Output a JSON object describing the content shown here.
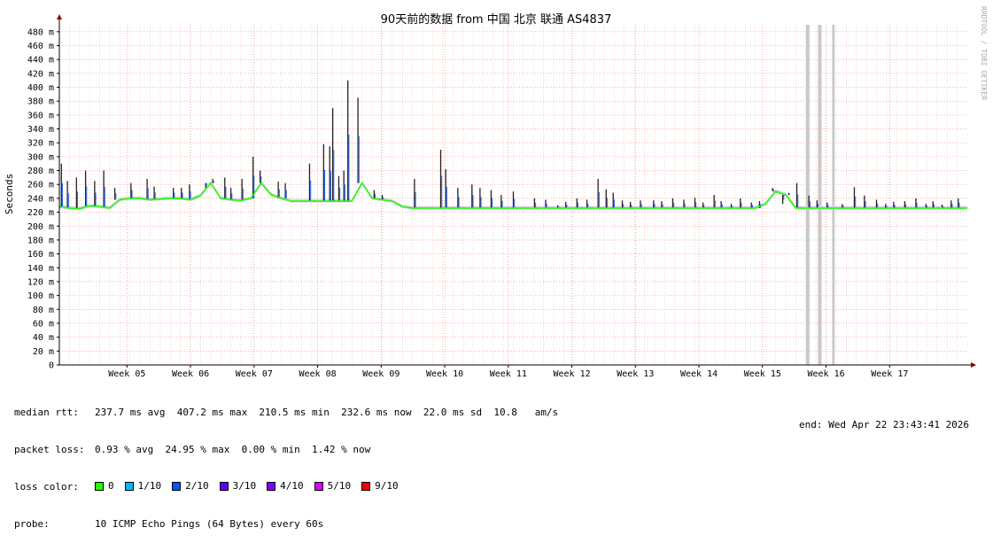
{
  "chart_data": {
    "type": "line",
    "title": "90天前的数据 from  中国 北京 联通 AS4837",
    "ylabel": "Seconds",
    "side_label": "RRDTOOL / TOBI OETIKER",
    "ylim": [
      0,
      490
    ],
    "y_ticks": [
      {
        "v": 0,
        "label": "0"
      },
      {
        "v": 20,
        "label": "20 m"
      },
      {
        "v": 40,
        "label": "40 m"
      },
      {
        "v": 60,
        "label": "60 m"
      },
      {
        "v": 80,
        "label": "80 m"
      },
      {
        "v": 100,
        "label": "100 m"
      },
      {
        "v": 120,
        "label": "120 m"
      },
      {
        "v": 140,
        "label": "140 m"
      },
      {
        "v": 160,
        "label": "160 m"
      },
      {
        "v": 180,
        "label": "180 m"
      },
      {
        "v": 200,
        "label": "200 m"
      },
      {
        "v": 220,
        "label": "220 m"
      },
      {
        "v": 240,
        "label": "240 m"
      },
      {
        "v": 260,
        "label": "260 m"
      },
      {
        "v": 280,
        "label": "280 m"
      },
      {
        "v": 300,
        "label": "300 m"
      },
      {
        "v": 320,
        "label": "320 m"
      },
      {
        "v": 340,
        "label": "340 m"
      },
      {
        "v": 360,
        "label": "360 m"
      },
      {
        "v": 380,
        "label": "380 m"
      },
      {
        "v": 400,
        "label": "400 m"
      },
      {
        "v": 420,
        "label": "420 m"
      },
      {
        "v": 440,
        "label": "440 m"
      },
      {
        "v": 460,
        "label": "460 m"
      },
      {
        "v": 480,
        "label": "480 m"
      }
    ],
    "xlim": [
      0,
      90
    ],
    "x_ticks": [
      {
        "x": 6.7,
        "label": "Week 05"
      },
      {
        "x": 13.0,
        "label": "Week 06"
      },
      {
        "x": 19.3,
        "label": "Week 07"
      },
      {
        "x": 25.6,
        "label": "Week 08"
      },
      {
        "x": 31.9,
        "label": "Week 09"
      },
      {
        "x": 38.2,
        "label": "Week 10"
      },
      {
        "x": 44.5,
        "label": "Week 11"
      },
      {
        "x": 50.8,
        "label": "Week 12"
      },
      {
        "x": 57.1,
        "label": "Week 13"
      },
      {
        "x": 63.4,
        "label": "Week 14"
      },
      {
        "x": 69.7,
        "label": "Week 15"
      },
      {
        "x": 76.0,
        "label": "Week 16"
      },
      {
        "x": 82.3,
        "label": "Week 17"
      }
    ],
    "median_series": [
      [
        0,
        228
      ],
      [
        1,
        226
      ],
      [
        2,
        225
      ],
      [
        3,
        229
      ],
      [
        4,
        228
      ],
      [
        5,
        226
      ],
      [
        6,
        238
      ],
      [
        7,
        240
      ],
      [
        8,
        240
      ],
      [
        9,
        238
      ],
      [
        10,
        239
      ],
      [
        11,
        240
      ],
      [
        12,
        240
      ],
      [
        13,
        238
      ],
      [
        14,
        244
      ],
      [
        15,
        262
      ],
      [
        16,
        240
      ],
      [
        17,
        238
      ],
      [
        18,
        237
      ],
      [
        19,
        240
      ],
      [
        20,
        262
      ],
      [
        21,
        245
      ],
      [
        22,
        240
      ],
      [
        23,
        236
      ],
      [
        24,
        236
      ],
      [
        25,
        236
      ],
      [
        26,
        236
      ],
      [
        27,
        236
      ],
      [
        28,
        236
      ],
      [
        29,
        236
      ],
      [
        30,
        262
      ],
      [
        31,
        240
      ],
      [
        32,
        238
      ],
      [
        33,
        236
      ],
      [
        34,
        228
      ],
      [
        35,
        226
      ],
      [
        36,
        226
      ],
      [
        37,
        226
      ],
      [
        38,
        226
      ],
      [
        39,
        226
      ],
      [
        40,
        226
      ],
      [
        41,
        226
      ],
      [
        42,
        226
      ],
      [
        43,
        226
      ],
      [
        44,
        226
      ],
      [
        45,
        226
      ],
      [
        46,
        226
      ],
      [
        47,
        226
      ],
      [
        48,
        226
      ],
      [
        49,
        226
      ],
      [
        50,
        226
      ],
      [
        51,
        226
      ],
      [
        52,
        226
      ],
      [
        53,
        226
      ],
      [
        54,
        226
      ],
      [
        55,
        226
      ],
      [
        56,
        226
      ],
      [
        57,
        226
      ],
      [
        58,
        226
      ],
      [
        59,
        226
      ],
      [
        60,
        226
      ],
      [
        61,
        226
      ],
      [
        62,
        226
      ],
      [
        63,
        226
      ],
      [
        64,
        226
      ],
      [
        65,
        226
      ],
      [
        66,
        226
      ],
      [
        67,
        226
      ],
      [
        68,
        226
      ],
      [
        69,
        226
      ],
      [
        70,
        232
      ],
      [
        71,
        250
      ],
      [
        72,
        245
      ],
      [
        73,
        226
      ],
      [
        74,
        226
      ],
      [
        75,
        226
      ],
      [
        76,
        226
      ],
      [
        77,
        226
      ],
      [
        78,
        226
      ],
      [
        79,
        226
      ],
      [
        80,
        226
      ],
      [
        81,
        226
      ],
      [
        82,
        226
      ],
      [
        83,
        226
      ],
      [
        84,
        226
      ],
      [
        85,
        226
      ],
      [
        86,
        226
      ],
      [
        87,
        226
      ],
      [
        88,
        226
      ],
      [
        89,
        226
      ],
      [
        90,
        226
      ]
    ],
    "spikes": [
      [
        0.2,
        290
      ],
      [
        0.8,
        265
      ],
      [
        1.7,
        270
      ],
      [
        2.6,
        280
      ],
      [
        3.5,
        265
      ],
      [
        4.4,
        280
      ],
      [
        5.5,
        255
      ],
      [
        7.1,
        262
      ],
      [
        8.7,
        268
      ],
      [
        9.4,
        257
      ],
      [
        11.3,
        255
      ],
      [
        12.1,
        255
      ],
      [
        12.9,
        260
      ],
      [
        14.5,
        255
      ],
      [
        15.2,
        268
      ],
      [
        16.4,
        270
      ],
      [
        17.0,
        255
      ],
      [
        18.1,
        268
      ],
      [
        19.2,
        300
      ],
      [
        19.9,
        280
      ],
      [
        21.7,
        264
      ],
      [
        22.4,
        262
      ],
      [
        24.8,
        290
      ],
      [
        26.2,
        318
      ],
      [
        26.8,
        315
      ],
      [
        27.1,
        370
      ],
      [
        27.7,
        272
      ],
      [
        28.2,
        280
      ],
      [
        28.6,
        410
      ],
      [
        29.6,
        385
      ],
      [
        31.2,
        252
      ],
      [
        32.0,
        245
      ],
      [
        35.2,
        268
      ],
      [
        37.8,
        310
      ],
      [
        38.3,
        282
      ],
      [
        39.5,
        255
      ],
      [
        40.9,
        260
      ],
      [
        41.7,
        255
      ],
      [
        42.8,
        252
      ],
      [
        43.8,
        245
      ],
      [
        45.0,
        250
      ],
      [
        47.1,
        240
      ],
      [
        48.2,
        238
      ],
      [
        49.4,
        230
      ],
      [
        50.2,
        235
      ],
      [
        51.3,
        240
      ],
      [
        52.3,
        238
      ],
      [
        53.4,
        268
      ],
      [
        54.2,
        253
      ],
      [
        54.9,
        248
      ],
      [
        55.8,
        237
      ],
      [
        56.6,
        235
      ],
      [
        57.6,
        237
      ],
      [
        58.9,
        237
      ],
      [
        59.7,
        236
      ],
      [
        60.8,
        240
      ],
      [
        61.9,
        238
      ],
      [
        63.0,
        241
      ],
      [
        63.8,
        234
      ],
      [
        64.9,
        245
      ],
      [
        65.6,
        236
      ],
      [
        66.6,
        232
      ],
      [
        67.5,
        240
      ],
      [
        68.6,
        234
      ],
      [
        69.4,
        236
      ],
      [
        70.7,
        255
      ],
      [
        71.7,
        232
      ],
      [
        72.3,
        248
      ],
      [
        73.1,
        262
      ],
      [
        74.3,
        244
      ],
      [
        75.1,
        237
      ],
      [
        76.1,
        234
      ],
      [
        77.6,
        232
      ],
      [
        78.8,
        256
      ],
      [
        79.8,
        244
      ],
      [
        81.0,
        238
      ],
      [
        81.9,
        232
      ],
      [
        82.7,
        235
      ],
      [
        83.8,
        236
      ],
      [
        84.9,
        240
      ],
      [
        85.9,
        232
      ],
      [
        86.6,
        236
      ],
      [
        87.5,
        231
      ],
      [
        88.4,
        237
      ],
      [
        89.1,
        240
      ]
    ],
    "loss_bars": [
      {
        "x": 74.0,
        "w": 0.35
      },
      {
        "x": 75.2,
        "w": 0.35
      },
      {
        "x": 76.6,
        "w": 0.25
      }
    ],
    "stats": {
      "median_label": "median rtt:",
      "median_values": "237.7 ms avg  407.2 ms max  210.5 ms min  232.6 ms now  22.0 ms sd  10.8   am/s",
      "loss_label": "packet loss:",
      "loss_values": "0.93 % avg  24.95 % max  0.00 % min  1.42 % now",
      "color_label": "loss color:",
      "loss_colors": [
        {
          "label": "0",
          "color": "#26ff00"
        },
        {
          "label": "1/10",
          "color": "#00b8ff"
        },
        {
          "label": "2/10",
          "color": "#0059ff"
        },
        {
          "label": "3/10",
          "color": "#5e00ff"
        },
        {
          "label": "4/10",
          "color": "#7e00ff"
        },
        {
          "label": "5/10",
          "color": "#dd00ff"
        },
        {
          "label": "9/10",
          "color": "#ff0000"
        }
      ],
      "probe_label": "probe:",
      "probe_value": "10 ICMP Echo Pings (64 Bytes) every 60s",
      "end_value": "end: Wed Apr 22 23:43:41 2026"
    }
  }
}
